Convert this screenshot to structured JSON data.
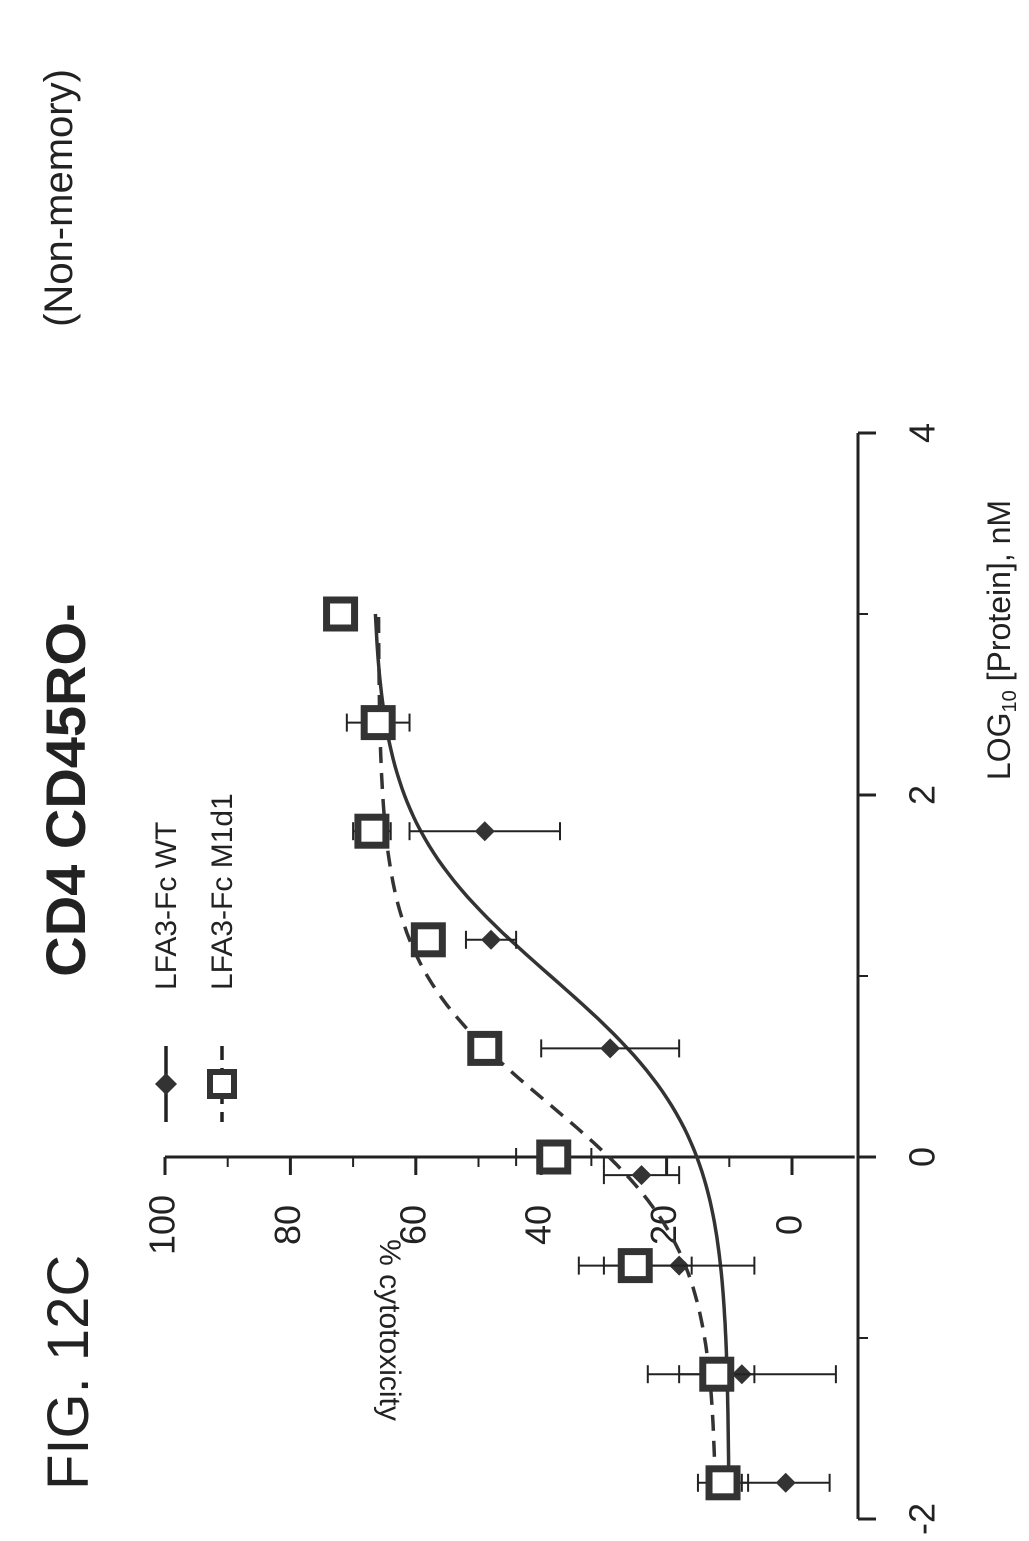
{
  "figure_label": "FIG. 12C",
  "chart_data": {
    "type": "scatter",
    "title": "CD4 CD45RO-",
    "subtitle": "(Non-memory)",
    "xlabel_main": "LOG",
    "xlabel_sub": "10",
    "xlabel_rest": " [Protein], nM",
    "ylabel": "% cytotoxicity",
    "xlim": [
      -2,
      4
    ],
    "ylim": [
      -10,
      100
    ],
    "x_ticks": [
      -2,
      0,
      2,
      4
    ],
    "x_tick_labels": [
      "-2",
      "0",
      "2",
      "4"
    ],
    "y_ticks": [
      0,
      20,
      40,
      60,
      80,
      100
    ],
    "y_tick_labels": [
      "0",
      "20",
      "40",
      "60",
      "80",
      "100"
    ],
    "grid": false,
    "legend_position": "top-left",
    "series": [
      {
        "name": "LFA3-Fc WT",
        "marker": "diamond",
        "line_style": "solid",
        "color": "#333333",
        "points": [
          {
            "x": -1.8,
            "y": 1,
            "err": 7
          },
          {
            "x": -1.2,
            "y": 8,
            "err": 15
          },
          {
            "x": -0.6,
            "y": 18,
            "err": 12
          },
          {
            "x": -0.1,
            "y": 24,
            "err": 6
          },
          {
            "x": 0.6,
            "y": 29,
            "err": 11
          },
          {
            "x": 1.2,
            "y": 48,
            "err": 4
          },
          {
            "x": 1.8,
            "y": 49,
            "err": 12
          }
        ],
        "fit": {
          "bottom": 10,
          "top": 67,
          "log_ec50": 1.0,
          "hill": 1.0,
          "x_range": [
            -1.8,
            3.0
          ]
        }
      },
      {
        "name": "LFA3-Fc M1d1",
        "marker": "square",
        "line_style": "dashed",
        "color": "#333333",
        "points": [
          {
            "x": -1.8,
            "y": 11,
            "err": 4
          },
          {
            "x": -1.2,
            "y": 12,
            "err": 6
          },
          {
            "x": -0.6,
            "y": 25,
            "err": 9
          },
          {
            "x": 0.0,
            "y": 38,
            "err": 6
          },
          {
            "x": 0.6,
            "y": 49,
            "err": 0
          },
          {
            "x": 1.2,
            "y": 58,
            "err": 0
          },
          {
            "x": 1.8,
            "y": 67,
            "err": 3
          },
          {
            "x": 2.4,
            "y": 66,
            "err": 5
          },
          {
            "x": 3.0,
            "y": 72,
            "err": 0
          }
        ],
        "fit": {
          "bottom": 12,
          "top": 66,
          "log_ec50": 0.3,
          "hill": 1.1,
          "x_range": [
            -1.8,
            3.0
          ]
        }
      }
    ]
  }
}
